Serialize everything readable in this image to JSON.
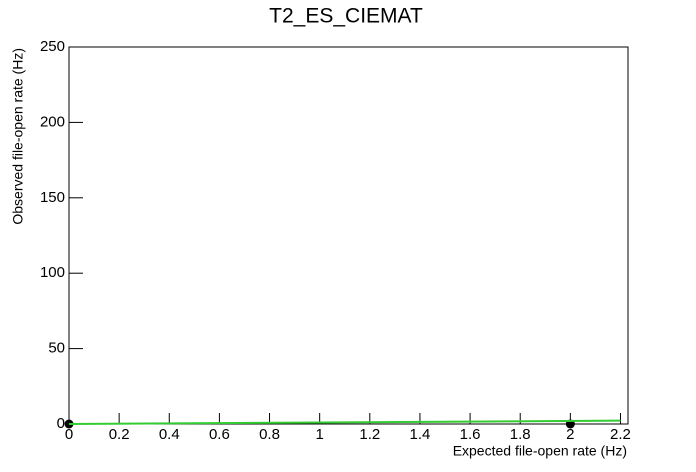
{
  "chart_data": {
    "type": "scatter",
    "title": "T2_ES_CIEMAT",
    "xlabel": "Expected file-open rate (Hz)",
    "ylabel": "Observed file-open rate (Hz)",
    "xlim": [
      0,
      2.23
    ],
    "ylim": [
      0,
      250
    ],
    "xticks": [
      0,
      0.2,
      0.4,
      0.6,
      0.8,
      1,
      1.2,
      1.4,
      1.6,
      1.8,
      2,
      2.2
    ],
    "yticks": [
      0,
      50,
      100,
      150,
      200,
      250
    ],
    "series": [
      {
        "type": "scatter",
        "color": "#000000",
        "x": [
          0,
          2
        ],
        "values": [
          0,
          0
        ]
      },
      {
        "type": "line",
        "color": "#33cc33",
        "x": [
          0,
          2.2
        ],
        "values": [
          0,
          2.2
        ]
      }
    ]
  }
}
